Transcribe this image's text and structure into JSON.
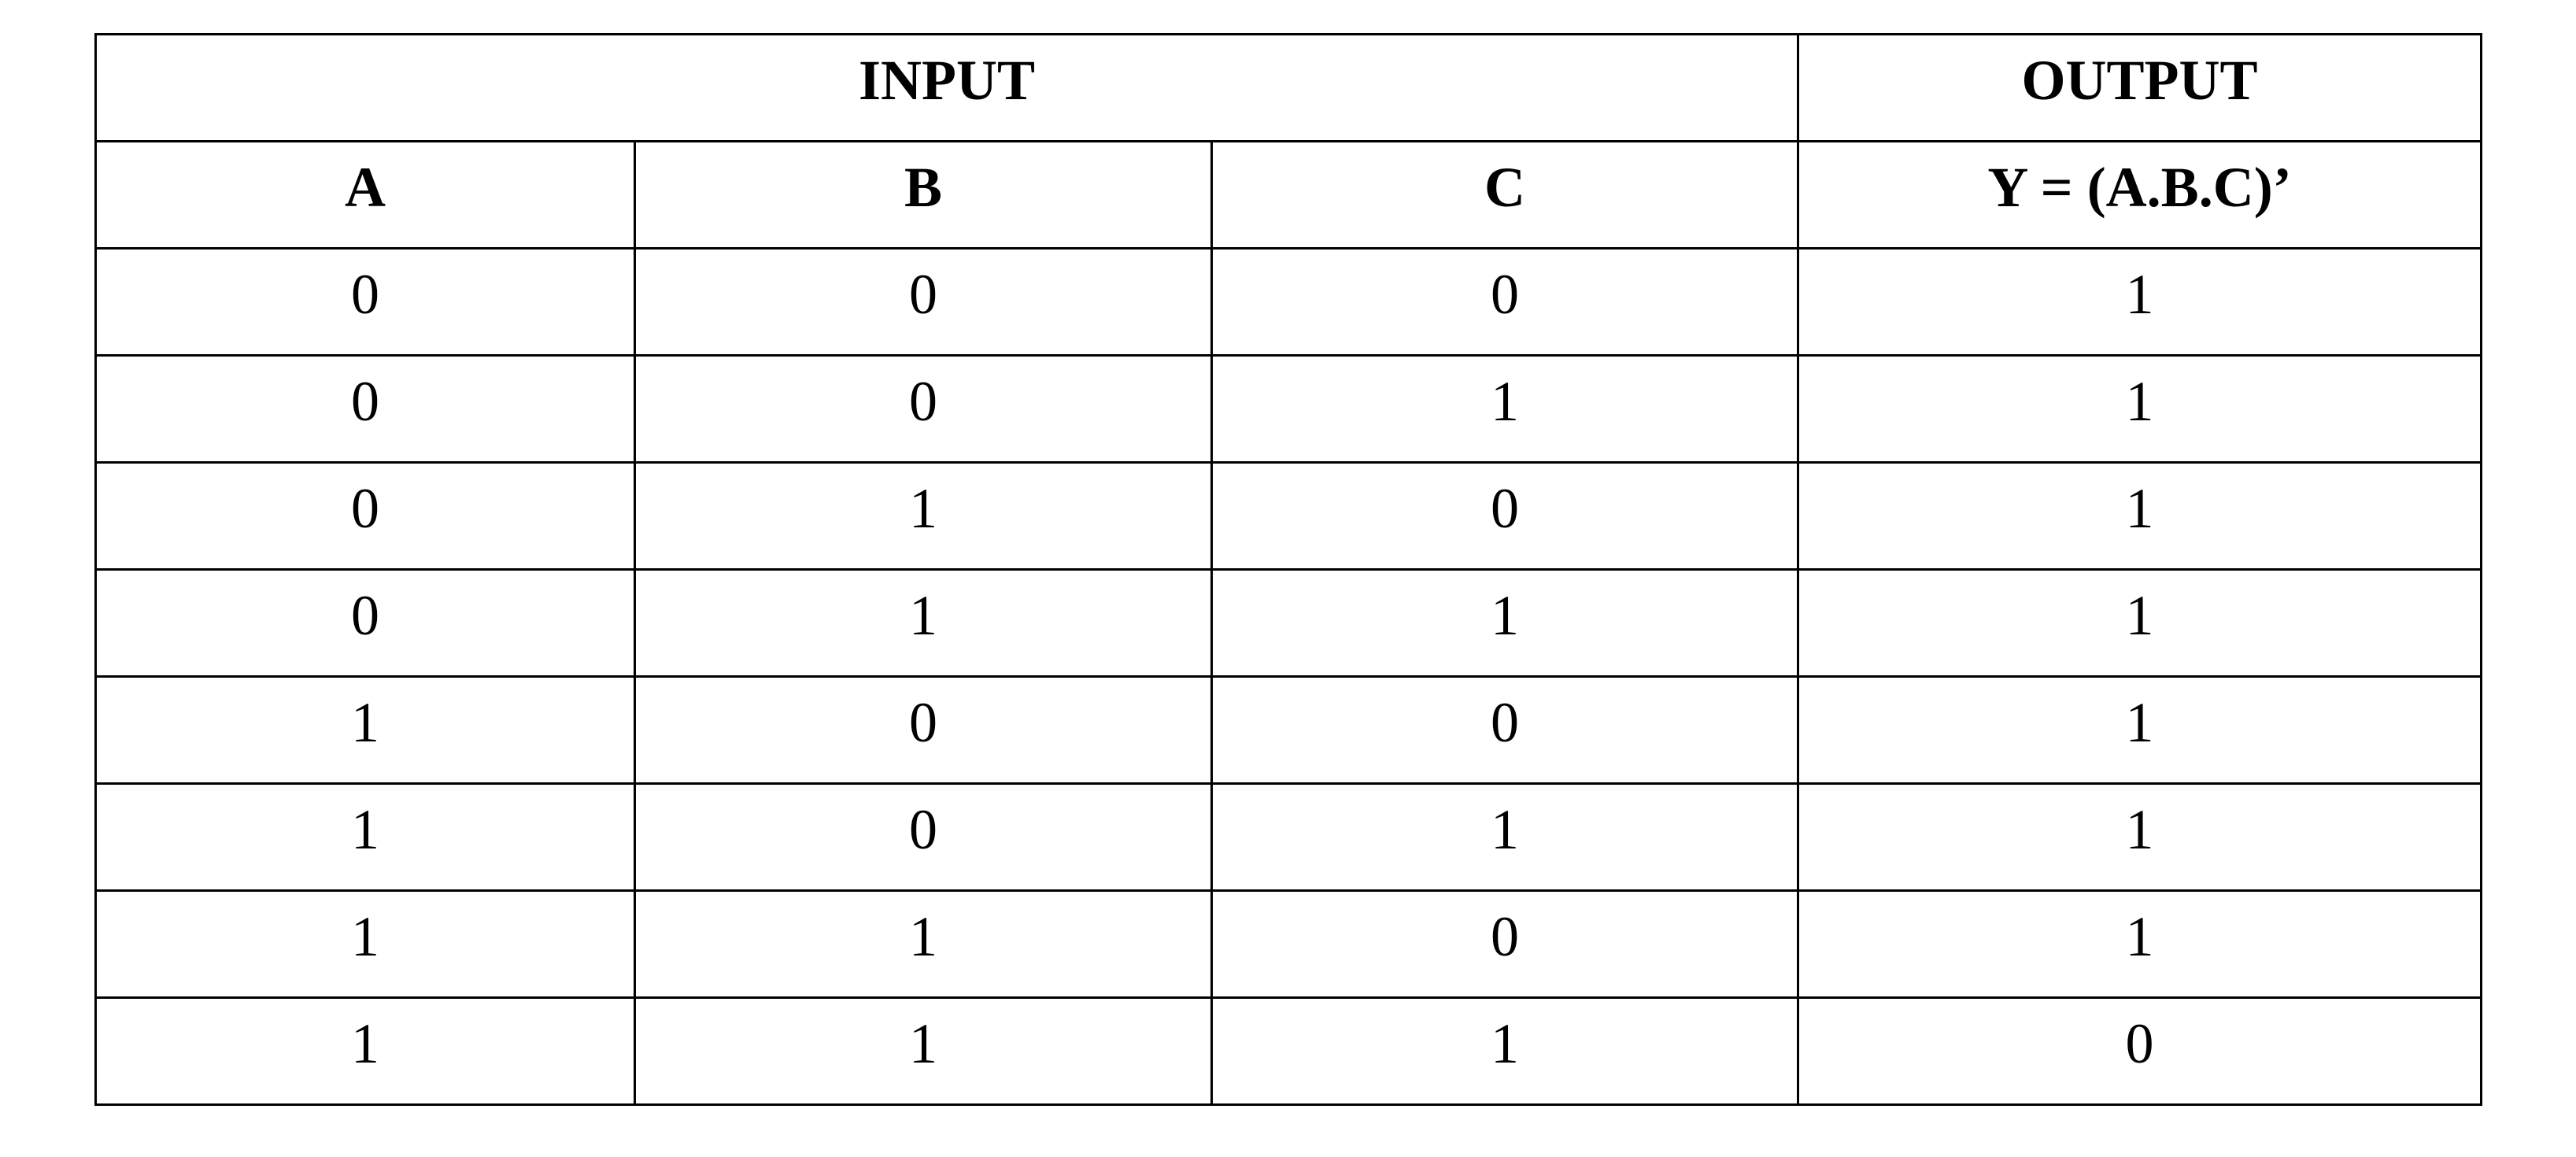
{
  "table": {
    "group_headers": {
      "input": "INPUT",
      "output": "OUTPUT"
    },
    "columns": [
      "A",
      "B",
      "C",
      "Y = (A.B.C)’"
    ],
    "rows": [
      [
        "0",
        "0",
        "0",
        "1"
      ],
      [
        "0",
        "0",
        "1",
        "1"
      ],
      [
        "0",
        "1",
        "0",
        "1"
      ],
      [
        "0",
        "1",
        "1",
        "1"
      ],
      [
        "1",
        "0",
        "0",
        "1"
      ],
      [
        "1",
        "0",
        "1",
        "1"
      ],
      [
        "1",
        "1",
        "0",
        "1"
      ],
      [
        "1",
        "1",
        "1",
        "0"
      ]
    ]
  }
}
